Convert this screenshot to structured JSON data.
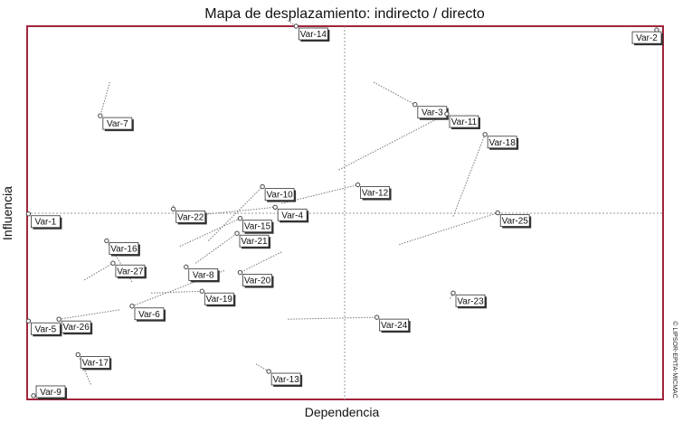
{
  "chart_data": {
    "type": "scatter",
    "title": "Mapa de desplazamiento: indirecto / directo",
    "xlabel": "Dependencia",
    "ylabel": "Influencia",
    "watermark": "© LIPSOR-EPITA-MICMAC",
    "xlim": [
      0,
      100
    ],
    "ylim": [
      0,
      100
    ],
    "colors": {
      "frame": "#a0243a",
      "arrow": "#777777",
      "point": "#444444"
    },
    "series": [
      {
        "name": "Var-14",
        "x": 42.3,
        "y": 100.0,
        "from": [
          41.0,
          101.5
        ]
      },
      {
        "name": "Var-2",
        "x": 99.0,
        "y": 99.0,
        "from": [
          99.0,
          99.0
        ]
      },
      {
        "name": "Var-3",
        "x": 61.0,
        "y": 79.0,
        "from": [
          54.5,
          85.0
        ]
      },
      {
        "name": "Var-11",
        "x": 66.0,
        "y": 76.5,
        "from": [
          49.0,
          61.5
        ]
      },
      {
        "name": "Var-7",
        "x": 11.5,
        "y": 76.0,
        "from": [
          13.0,
          85.0
        ]
      },
      {
        "name": "Var-18",
        "x": 72.0,
        "y": 71.0,
        "from": [
          67.0,
          49.0
        ]
      },
      {
        "name": "Var-10",
        "x": 37.0,
        "y": 57.0,
        "from": [
          28.5,
          42.5
        ]
      },
      {
        "name": "Var-12",
        "x": 52.0,
        "y": 57.5,
        "from": [
          40.0,
          52.5
        ]
      },
      {
        "name": "Var-22",
        "x": 23.0,
        "y": 51.0,
        "from": [
          23.0,
          52.0
        ]
      },
      {
        "name": "Var-1",
        "x": 0.2,
        "y": 49.7,
        "from": [
          0.2,
          49.7
        ]
      },
      {
        "name": "Var-4",
        "x": 39.0,
        "y": 51.5,
        "from": [
          24.5,
          49.0
        ]
      },
      {
        "name": "Var-25",
        "x": 74.0,
        "y": 50.0,
        "from": [
          58.5,
          41.5
        ]
      },
      {
        "name": "Var-15",
        "x": 33.5,
        "y": 48.5,
        "from": [
          24.0,
          41.0
        ]
      },
      {
        "name": "Var-16",
        "x": 12.5,
        "y": 42.5,
        "from": [
          16.5,
          31.5
        ]
      },
      {
        "name": "Var-21",
        "x": 33.0,
        "y": 44.5,
        "from": [
          26.5,
          36.5
        ]
      },
      {
        "name": "Var-27",
        "x": 13.5,
        "y": 36.5,
        "from": [
          9.0,
          32.0
        ]
      },
      {
        "name": "Var-8",
        "x": 25.0,
        "y": 35.5,
        "from": [
          25.0,
          35.0
        ]
      },
      {
        "name": "Var-20",
        "x": 33.5,
        "y": 34.0,
        "from": [
          40.0,
          39.5
        ]
      },
      {
        "name": "Var-19",
        "x": 27.5,
        "y": 29.0,
        "from": [
          19.5,
          28.5
        ]
      },
      {
        "name": "Var-6",
        "x": 16.5,
        "y": 25.0,
        "from": [
          31.0,
          34.5
        ]
      },
      {
        "name": "Var-5",
        "x": 0.2,
        "y": 21.0,
        "from": [
          0.2,
          21.0
        ]
      },
      {
        "name": "Var-26",
        "x": 5.0,
        "y": 21.5,
        "from": [
          14.5,
          24.0
        ]
      },
      {
        "name": "Var-24",
        "x": 55.0,
        "y": 22.0,
        "from": [
          41.0,
          21.5
        ]
      },
      {
        "name": "Var-23",
        "x": 67.0,
        "y": 28.5,
        "from": [
          66.5,
          27.0
        ]
      },
      {
        "name": "Var-17",
        "x": 8.0,
        "y": 12.0,
        "from": [
          10.0,
          4.0
        ]
      },
      {
        "name": "Var-13",
        "x": 38.0,
        "y": 7.5,
        "from": [
          36.0,
          9.5
        ]
      },
      {
        "name": "Var-9",
        "x": 1.0,
        "y": 1.0,
        "from": [
          1.0,
          1.0
        ]
      }
    ]
  }
}
